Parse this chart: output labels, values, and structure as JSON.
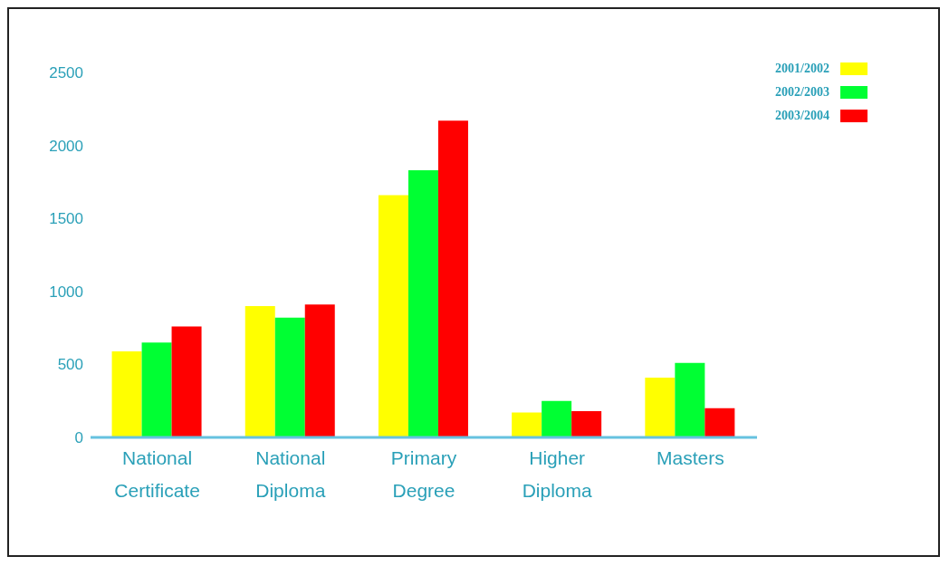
{
  "chart_data": {
    "type": "bar",
    "categories": [
      "National Certificate",
      "National Diploma",
      "Primary Degree",
      "Higher Diploma",
      "Masters"
    ],
    "series": [
      {
        "name": "2001/2002",
        "color": "#ffff00",
        "values": [
          590,
          900,
          1660,
          170,
          410
        ]
      },
      {
        "name": "2002/2003",
        "color": "#00ff33",
        "values": [
          650,
          820,
          1830,
          250,
          510
        ]
      },
      {
        "name": "2003/2004",
        "color": "#ff0000",
        "values": [
          760,
          910,
          2170,
          180,
          200
        ]
      }
    ],
    "ylim": [
      0,
      2500
    ],
    "yticks": [
      0,
      500,
      1000,
      1500,
      2000,
      2500
    ],
    "grid": false,
    "legend": "top right"
  }
}
